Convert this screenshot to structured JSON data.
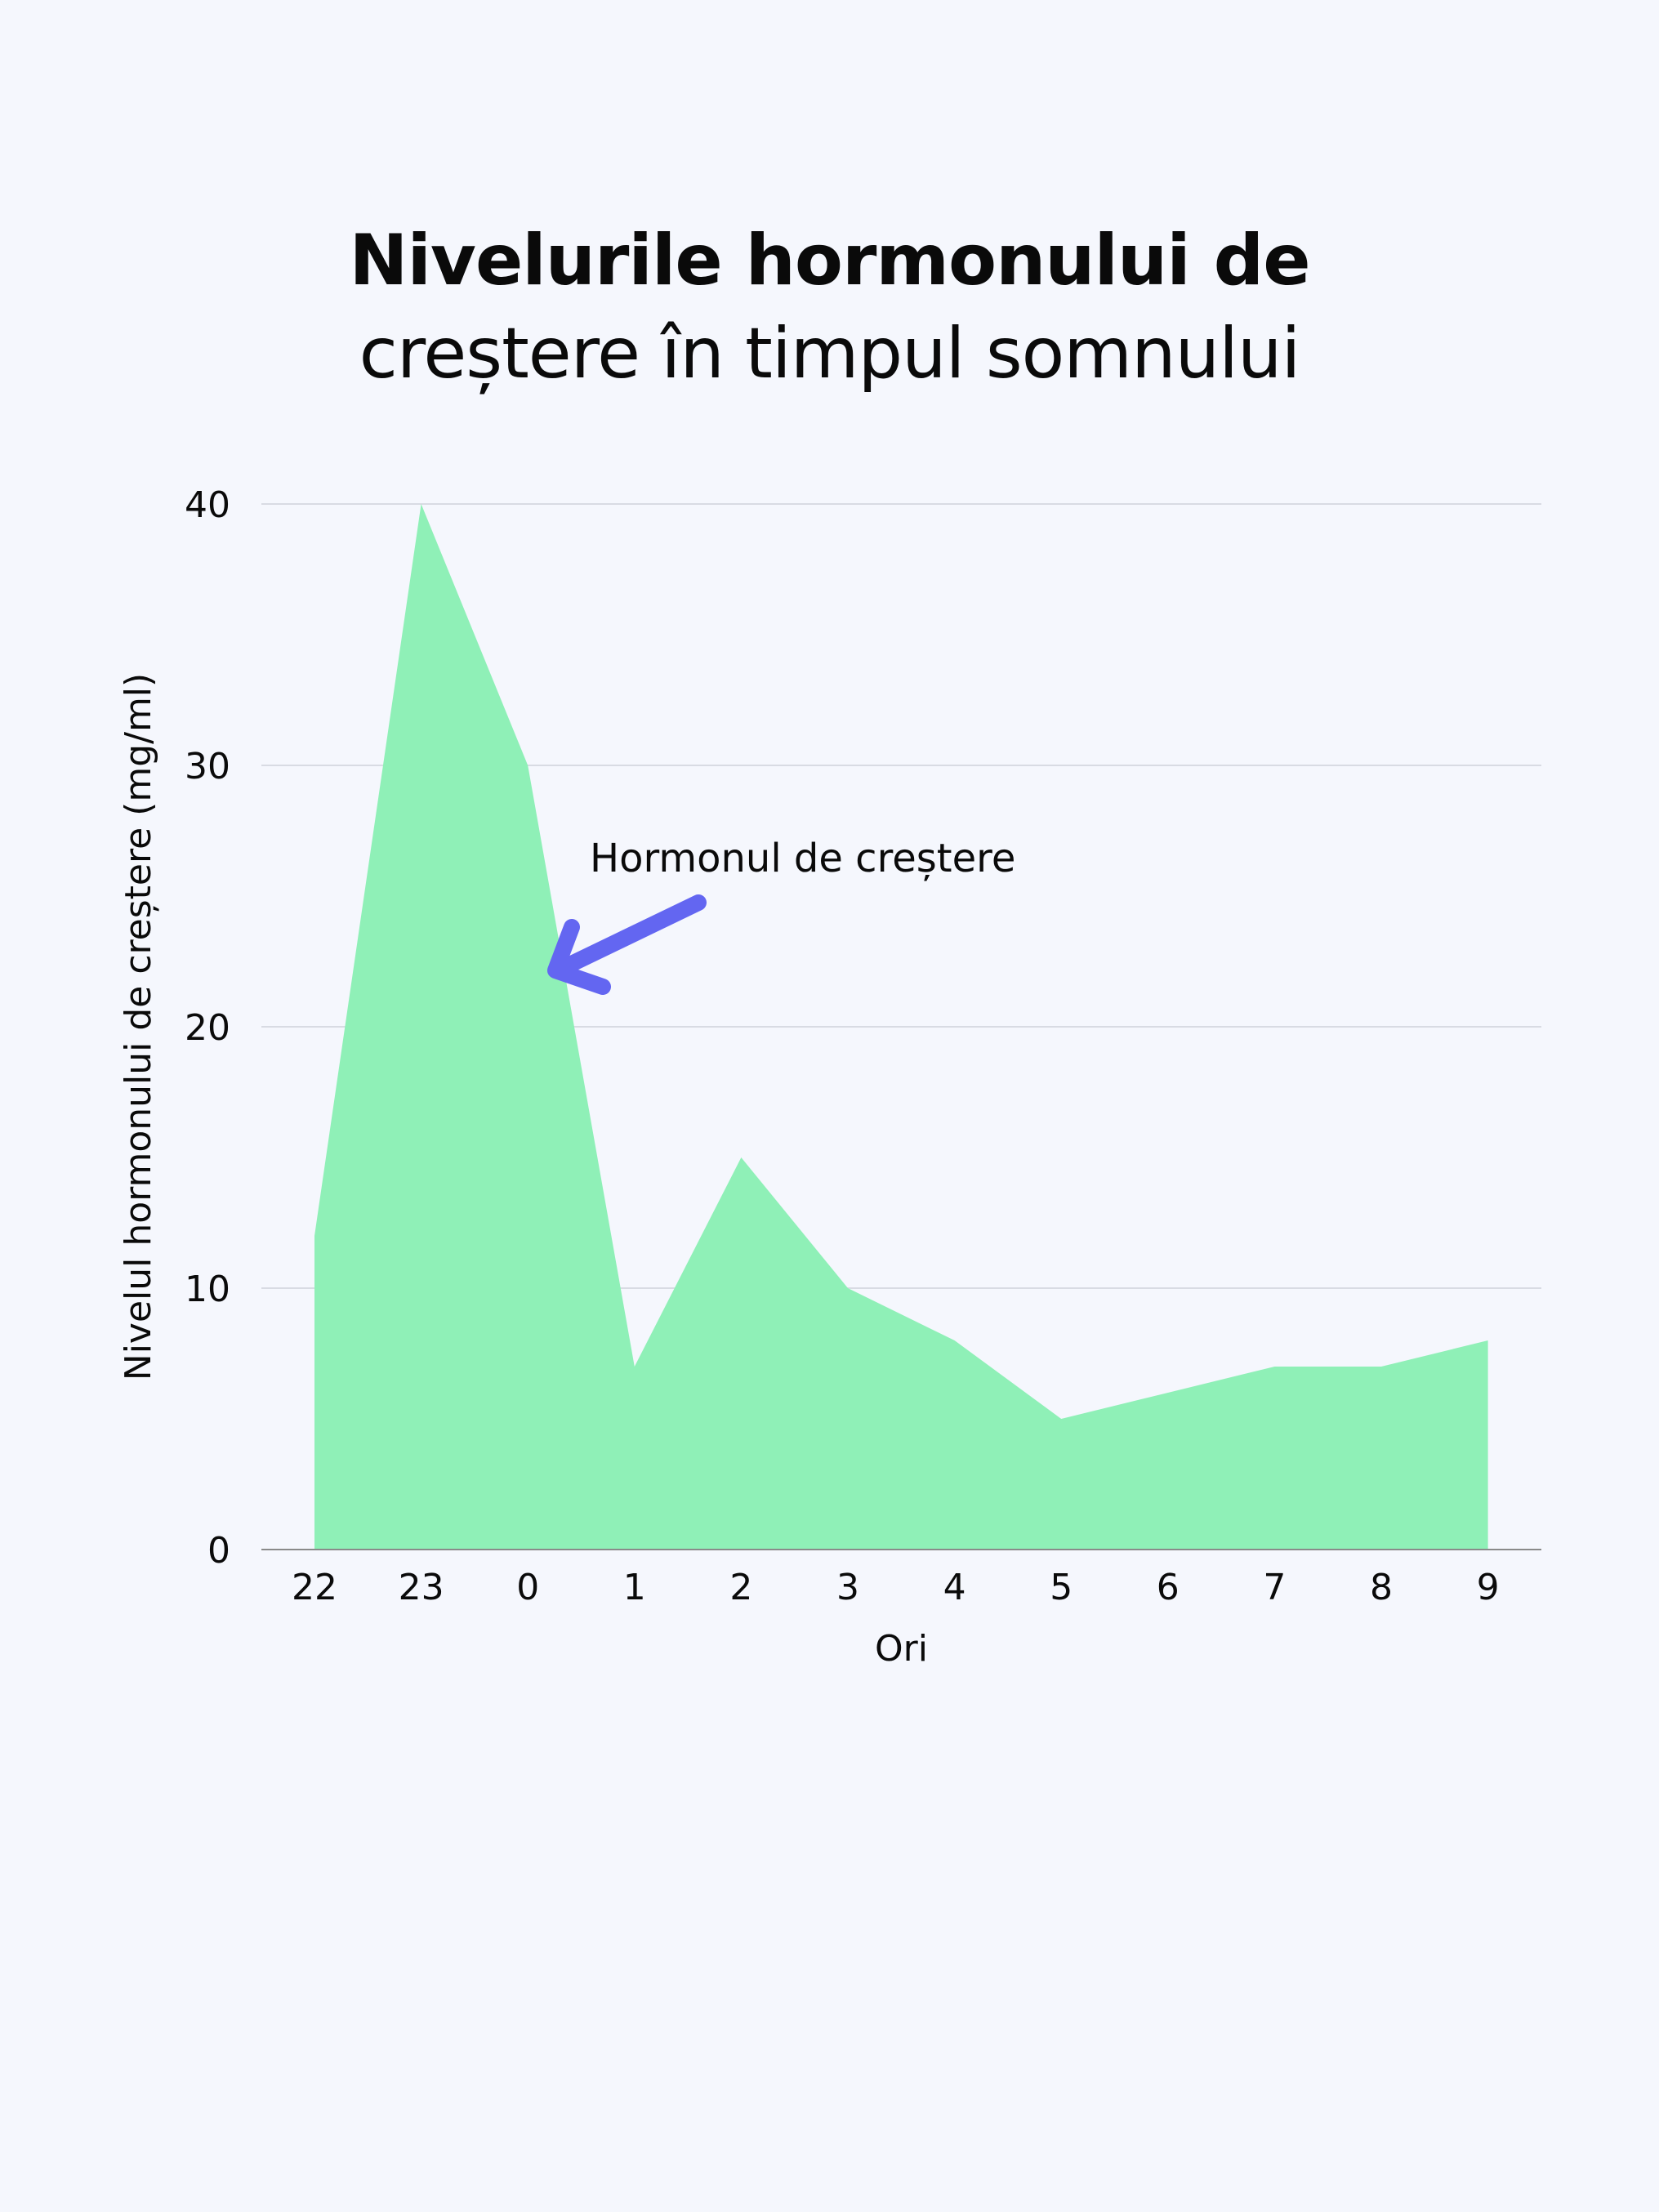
{
  "title": {
    "line1": "Nivelurile hormonului de",
    "line2": "creștere în timpul somnului"
  },
  "colors": {
    "background": "#F5F7FD",
    "area_fill": "#8FF0B7",
    "arrow": "#6366F1",
    "grid": "#D8DBE3",
    "baseline": "#8A8A8A",
    "text": "#0A0A0A"
  },
  "annotation": {
    "text": "Hormonul de creștere",
    "target_x": "0",
    "target_value": 22
  },
  "chart_data": {
    "type": "area",
    "title": "Nivelurile hormonului de creștere în timpul somnului",
    "xlabel": "Ori",
    "ylabel": "Nivelul hormonului de creștere (mg/ml)",
    "categories": [
      "22",
      "23",
      "0",
      "1",
      "2",
      "3",
      "4",
      "5",
      "6",
      "7",
      "8",
      "9"
    ],
    "series": [
      {
        "name": "Hormonul de creștere",
        "values": [
          12,
          40,
          30,
          7,
          15,
          10,
          8,
          5,
          6,
          7,
          7,
          8
        ]
      }
    ],
    "ylim": [
      0,
      40
    ],
    "yticks": [
      0,
      10,
      20,
      30,
      40
    ],
    "grid": true,
    "legend": "none",
    "annotations": [
      {
        "text": "Hormonul de creștere",
        "arrow_points_to": {
          "x": "0",
          "y": 22
        }
      }
    ]
  }
}
